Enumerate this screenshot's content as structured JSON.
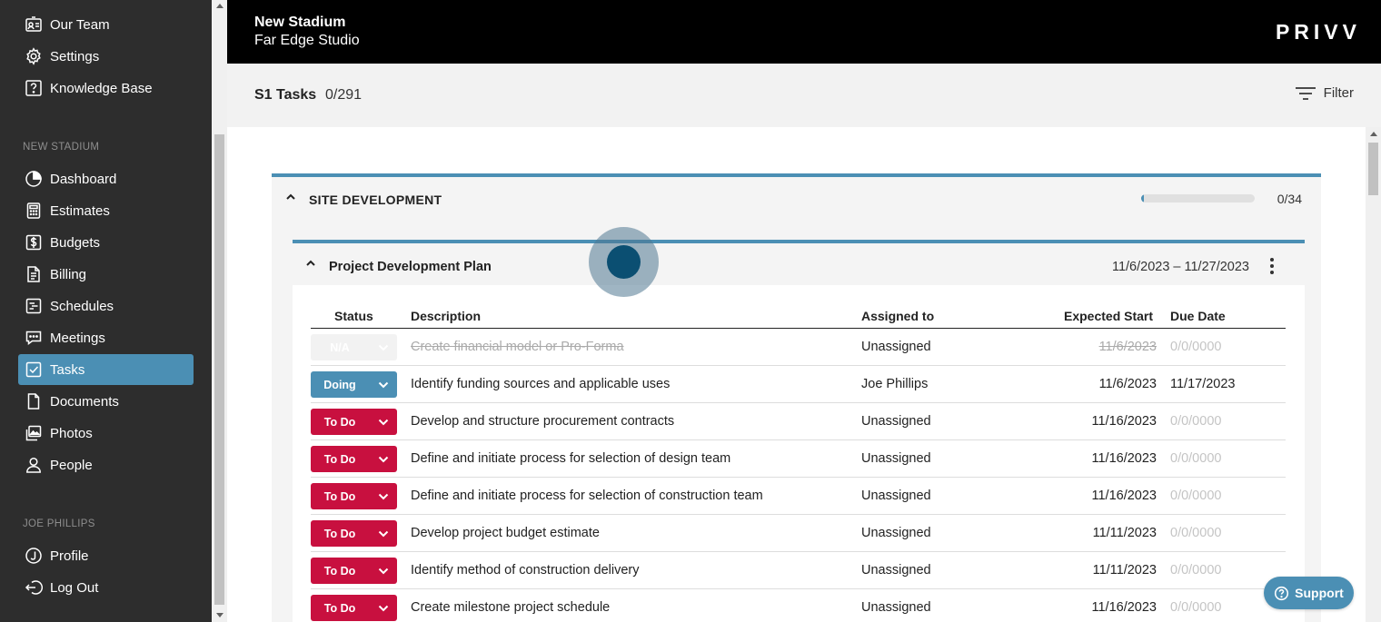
{
  "sidebar": {
    "top_items": [
      {
        "label": "Our Team",
        "icon": "team-card-icon"
      },
      {
        "label": "Settings",
        "icon": "gear-icon"
      },
      {
        "label": "Knowledge Base",
        "icon": "help-icon"
      }
    ],
    "project_section": "NEW STADIUM",
    "project_items": [
      {
        "label": "Dashboard",
        "icon": "pie-chart-icon"
      },
      {
        "label": "Estimates",
        "icon": "calculator-icon"
      },
      {
        "label": "Budgets",
        "icon": "dollar-icon"
      },
      {
        "label": "Billing",
        "icon": "invoice-icon"
      },
      {
        "label": "Schedules",
        "icon": "schedule-icon"
      },
      {
        "label": "Meetings",
        "icon": "chat-icon"
      },
      {
        "label": "Tasks",
        "icon": "checkbox-icon",
        "active": true
      },
      {
        "label": "Documents",
        "icon": "document-icon"
      },
      {
        "label": "Photos",
        "icon": "photos-icon"
      },
      {
        "label": "People",
        "icon": "person-icon"
      }
    ],
    "user_section": "JOE PHILLIPS",
    "user_items": [
      {
        "label": "Profile",
        "icon": "profile-icon"
      },
      {
        "label": "Log Out",
        "icon": "logout-icon"
      }
    ]
  },
  "header": {
    "project": "New Stadium",
    "studio": "Far Edge Studio",
    "brand": "PRIVV"
  },
  "tasks_bar": {
    "title": "S1 Tasks",
    "count": "0/291",
    "filter_label": "Filter"
  },
  "group": {
    "title": "SITE DEVELOPMENT",
    "count": "0/34",
    "progress": 0.02
  },
  "subgroup": {
    "title": "Project Development Plan",
    "dates": "11/6/2023 – 11/27/2023"
  },
  "table": {
    "headers": {
      "status": "Status",
      "description": "Description",
      "assigned": "Assigned to",
      "start": "Expected Start",
      "due": "Due Date"
    },
    "rows": [
      {
        "status": "N/A",
        "kind": "na",
        "description": "Create financial model or Pro-Forma",
        "assigned": "Unassigned",
        "start": "11/6/2023",
        "due": "0/0/0000"
      },
      {
        "status": "Doing",
        "kind": "doing",
        "description": "Identify funding sources and applicable uses",
        "assigned": "Joe Phillips",
        "start": "11/6/2023",
        "due": "11/17/2023"
      },
      {
        "status": "To Do",
        "kind": "todo",
        "description": "Develop and structure procurement contracts",
        "assigned": "Unassigned",
        "start": "11/16/2023",
        "due": "0/0/0000"
      },
      {
        "status": "To Do",
        "kind": "todo",
        "description": "Define and initiate process for selection of design team",
        "assigned": "Unassigned",
        "start": "11/16/2023",
        "due": "0/0/0000"
      },
      {
        "status": "To Do",
        "kind": "todo",
        "description": "Define and initiate process for selection of construction team",
        "assigned": "Unassigned",
        "start": "11/16/2023",
        "due": "0/0/0000"
      },
      {
        "status": "To Do",
        "kind": "todo",
        "description": "Develop project budget estimate",
        "assigned": "Unassigned",
        "start": "11/11/2023",
        "due": "0/0/0000"
      },
      {
        "status": "To Do",
        "kind": "todo",
        "description": "Identify method of construction delivery",
        "assigned": "Unassigned",
        "start": "11/11/2023",
        "due": "0/0/0000"
      },
      {
        "status": "To Do",
        "kind": "todo",
        "description": "Create milestone project schedule",
        "assigned": "Unassigned",
        "start": "11/16/2023",
        "due": "0/0/0000"
      }
    ]
  },
  "support": {
    "label": "Support"
  },
  "colors": {
    "accent": "#4b8fb4",
    "todo": "#c8103f",
    "sidebar": "#2d2d2d"
  }
}
